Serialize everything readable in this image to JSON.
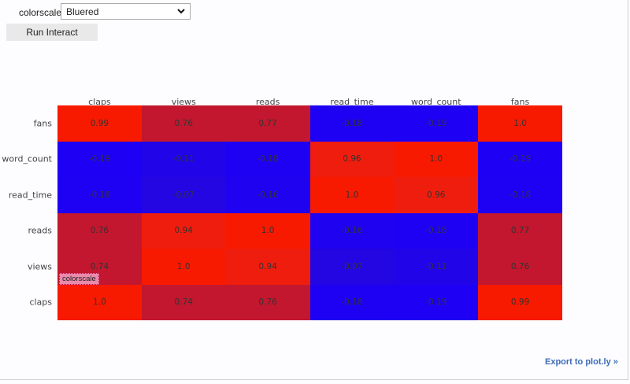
{
  "controls": {
    "colorscale_label": "colorscale",
    "colorscale_value": "Bluered",
    "run_button": "Run Interact"
  },
  "tooltip_label": "colorscale",
  "export_link": "Export to plot.ly »",
  "colors": {
    "blue": "#1e00f5",
    "red": "#f71a00",
    "mid_red": "#c2172e",
    "link": "#3b6cb7"
  },
  "chart_data": {
    "type": "heatmap",
    "title": "",
    "colorscale": "Bluered",
    "x": [
      "claps",
      "views",
      "reads",
      "read_time",
      "word_count",
      "fans"
    ],
    "y_top_to_bottom": [
      "fans",
      "word_count",
      "read_time",
      "reads",
      "views",
      "claps"
    ],
    "z_top_to_bottom": [
      [
        "0.99",
        "0.76",
        "0.77",
        "-0.18",
        "-0.19",
        "1.0"
      ],
      [
        "-0.19",
        "-0.11",
        "-0.18",
        "0.96",
        "1.0",
        "-0.19"
      ],
      [
        "-0.18",
        "-0.07",
        "-0.16",
        "1.0",
        "0.96",
        "-0.18"
      ],
      [
        "0.76",
        "0.94",
        "1.0",
        "-0.16",
        "-0.18",
        "0.77"
      ],
      [
        "0.74",
        "1.0",
        "0.94",
        "-0.07",
        "-0.11",
        "0.76"
      ],
      [
        "1.0",
        "0.74",
        "0.76",
        "-0.18",
        "-0.19",
        "0.99"
      ]
    ],
    "zlim": [
      -0.19,
      1.0
    ],
    "grid": false,
    "legend": "none"
  }
}
